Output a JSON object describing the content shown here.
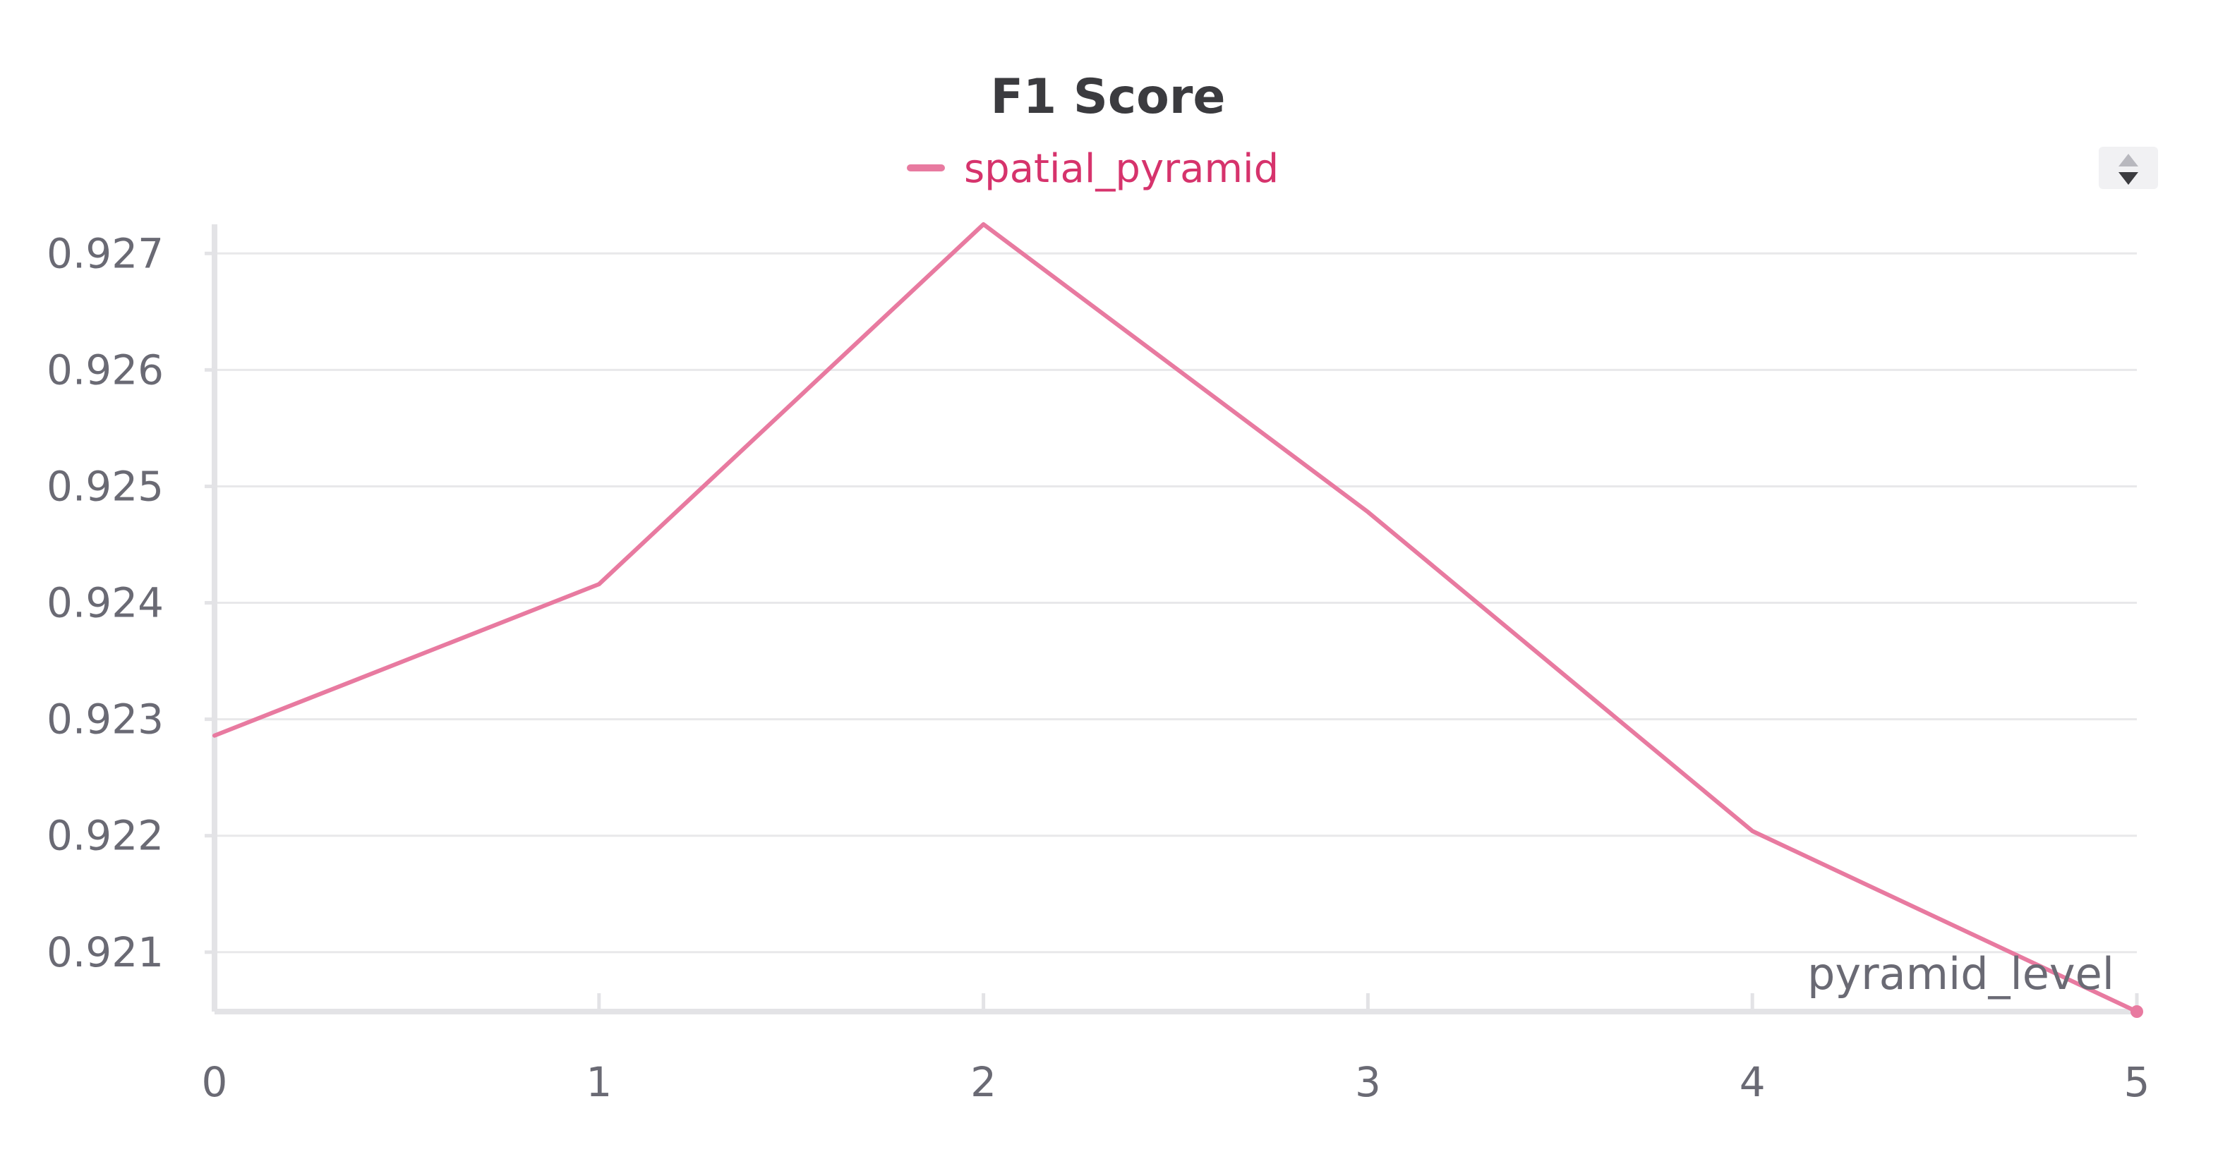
{
  "chart_data": {
    "type": "line",
    "title": "F1 Score",
    "xlabel": "pyramid_level",
    "ylabel": "",
    "x": [
      0,
      1,
      2,
      3,
      4,
      5
    ],
    "series": [
      {
        "name": "spatial_pyramid",
        "color": "#e87aa0",
        "values": [
          0.92286,
          0.92416,
          0.92725,
          0.92478,
          0.92204,
          0.92049
        ]
      }
    ],
    "xlim": [
      0,
      5
    ],
    "ylim": [
      0.92049,
      0.92725
    ],
    "x_ticks": [
      "0",
      "1",
      "2",
      "3",
      "4",
      "5"
    ],
    "y_ticks": [
      "0.927",
      "0.926",
      "0.925",
      "0.924",
      "0.923",
      "0.922",
      "0.921"
    ],
    "grid": true,
    "legend_position": "top-center"
  },
  "legend_text_color": "#d6336c",
  "controls": {
    "sort_icon": "sort-updown-icon"
  }
}
